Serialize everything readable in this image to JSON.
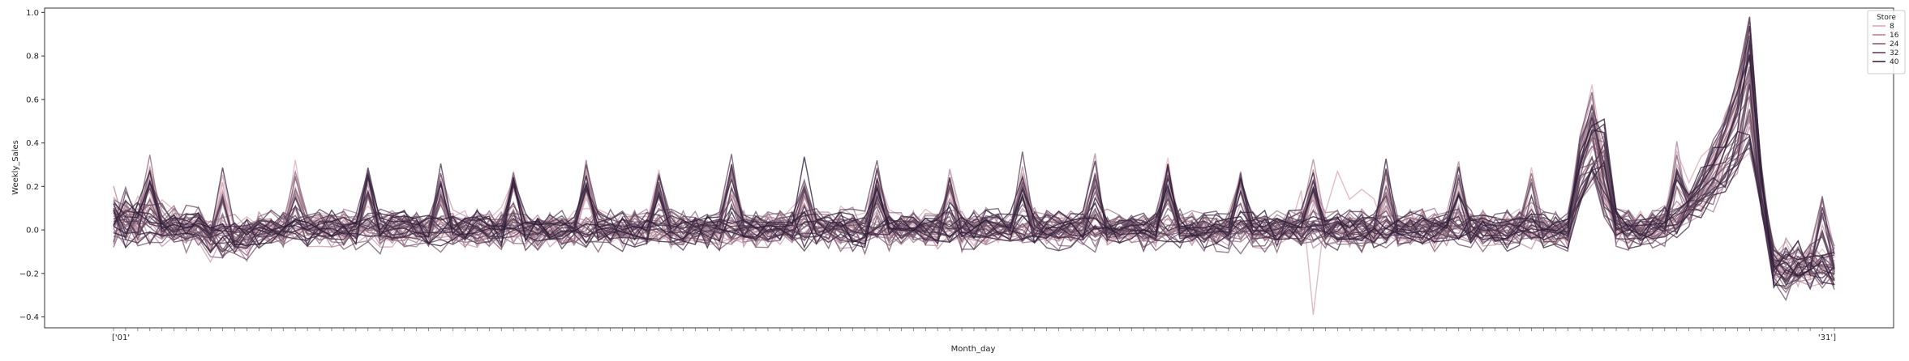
{
  "chart_data": {
    "type": "line",
    "title": "",
    "xlabel": "Month_day",
    "ylabel": "Weekly_Sales",
    "ylim": [
      -0.45,
      1.02
    ],
    "yticks": [
      -0.4,
      -0.2,
      0.0,
      0.2,
      0.4,
      0.6,
      0.8,
      1.0
    ],
    "ytick_labels": [
      "−0.4",
      "−0.2",
      "0.0",
      "0.2",
      "0.4",
      "0.6",
      "0.8",
      "1.0"
    ],
    "x_first_label": "['01'",
    "x_last_label": "'31']",
    "x_count": 143,
    "grid": false,
    "legend": {
      "title": "Store",
      "placement": "top-right",
      "entries": [
        {
          "label": "8",
          "color": "#e3a7b8"
        },
        {
          "label": "16",
          "color": "#c47a96"
        },
        {
          "label": "24",
          "color": "#9b567c"
        },
        {
          "label": "32",
          "color": "#6f3a63"
        },
        {
          "label": "40",
          "color": "#3f2545"
        }
      ]
    },
    "series_count": 45,
    "color_range": [
      "#eab9c6",
      "#2b1b36"
    ],
    "features": {
      "baseline": 0.0,
      "spike_region_1": {
        "x_index": 121,
        "peak": 0.7
      },
      "spike_region_2": {
        "x_index": 135,
        "peak": 0.95
      },
      "outlier_low": {
        "x_index": 99,
        "value": -0.39
      }
    }
  }
}
